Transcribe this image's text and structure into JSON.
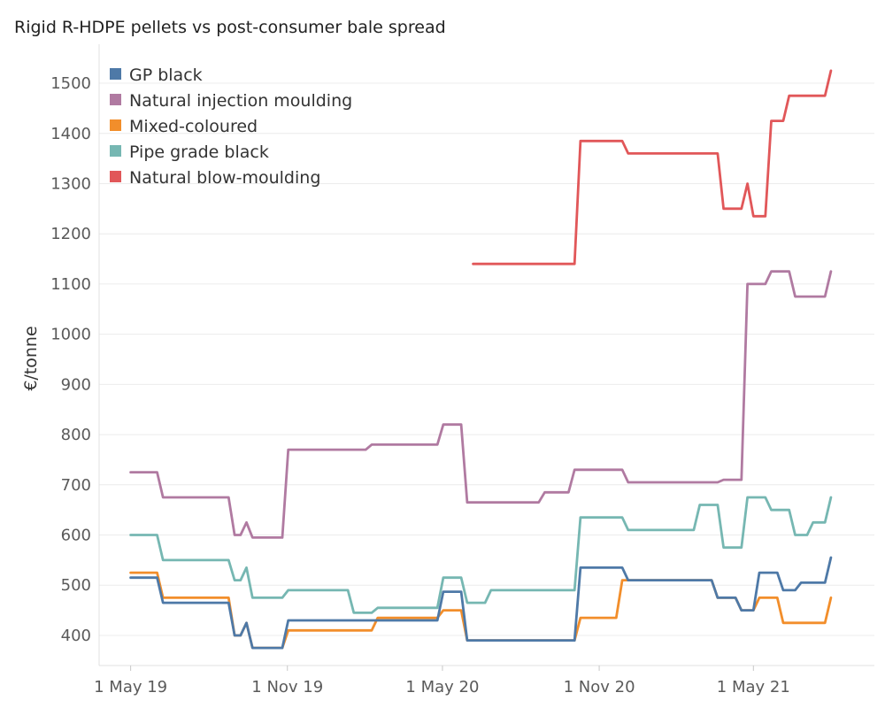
{
  "chart_data": {
    "type": "line",
    "title": "Rigid R-HDPE pellets vs post-consumer bale spread",
    "xlabel": "",
    "ylabel": "€/tonne",
    "ylim": [
      340,
      1560
    ],
    "xlim": [
      "2019-03-25",
      "2021-09-20"
    ],
    "x_ticks": [
      {
        "label": "1 May 19",
        "date": "2019-05-01"
      },
      {
        "label": "1 Nov 19",
        "date": "2019-11-01"
      },
      {
        "label": "1 May 20",
        "date": "2020-05-01"
      },
      {
        "label": "1 Nov 20",
        "date": "2020-11-01"
      },
      {
        "label": "1 May 21",
        "date": "2021-05-01"
      }
    ],
    "y_ticks": [
      400,
      500,
      600,
      700,
      800,
      900,
      1000,
      1100,
      1200,
      1300,
      1400,
      1500
    ],
    "grid": "horizontal",
    "legend_position": "top-left",
    "series": [
      {
        "name": "GP black",
        "color": "#4e79a7",
        "points": [
          [
            "2019-05-01",
            515
          ],
          [
            "2019-06-01",
            515
          ],
          [
            "2019-06-08",
            465
          ],
          [
            "2019-08-24",
            465
          ],
          [
            "2019-08-31",
            400
          ],
          [
            "2019-09-07",
            400
          ],
          [
            "2019-09-14",
            425
          ],
          [
            "2019-09-21",
            375
          ],
          [
            "2019-10-26",
            375
          ],
          [
            "2019-11-02",
            430
          ],
          [
            "2020-04-25",
            430
          ],
          [
            "2020-05-02",
            487
          ],
          [
            "2020-05-23",
            487
          ],
          [
            "2020-05-30",
            390
          ],
          [
            "2020-10-03",
            390
          ],
          [
            "2020-10-10",
            535
          ],
          [
            "2020-11-28",
            535
          ],
          [
            "2020-12-05",
            510
          ],
          [
            "2021-03-13",
            510
          ],
          [
            "2021-03-20",
            475
          ],
          [
            "2021-04-10",
            475
          ],
          [
            "2021-04-17",
            450
          ],
          [
            "2021-05-01",
            450
          ],
          [
            "2021-05-08",
            525
          ],
          [
            "2021-05-29",
            525
          ],
          [
            "2021-06-05",
            490
          ],
          [
            "2021-06-19",
            490
          ],
          [
            "2021-06-26",
            505
          ],
          [
            "2021-07-24",
            505
          ],
          [
            "2021-07-31",
            555
          ]
        ]
      },
      {
        "name": "Natural injection moulding",
        "color": "#b07aa1",
        "points": [
          [
            "2019-05-01",
            725
          ],
          [
            "2019-06-01",
            725
          ],
          [
            "2019-06-08",
            675
          ],
          [
            "2019-08-24",
            675
          ],
          [
            "2019-08-31",
            600
          ],
          [
            "2019-09-07",
            600
          ],
          [
            "2019-09-14",
            625
          ],
          [
            "2019-09-21",
            595
          ],
          [
            "2019-10-26",
            595
          ],
          [
            "2019-11-02",
            770
          ],
          [
            "2020-02-01",
            770
          ],
          [
            "2020-02-08",
            780
          ],
          [
            "2020-04-25",
            780
          ],
          [
            "2020-05-02",
            820
          ],
          [
            "2020-05-23",
            820
          ],
          [
            "2020-05-30",
            665
          ],
          [
            "2020-08-22",
            665
          ],
          [
            "2020-08-29",
            685
          ],
          [
            "2020-09-26",
            685
          ],
          [
            "2020-10-03",
            730
          ],
          [
            "2020-11-28",
            730
          ],
          [
            "2020-12-05",
            705
          ],
          [
            "2021-03-20",
            705
          ],
          [
            "2021-03-27",
            710
          ],
          [
            "2021-04-17",
            710
          ],
          [
            "2021-04-24",
            1100
          ],
          [
            "2021-05-15",
            1100
          ],
          [
            "2021-05-22",
            1125
          ],
          [
            "2021-06-12",
            1125
          ],
          [
            "2021-06-19",
            1075
          ],
          [
            "2021-07-24",
            1075
          ],
          [
            "2021-07-31",
            1125
          ]
        ]
      },
      {
        "name": "Mixed-coloured",
        "color": "#f28e2b",
        "points": [
          [
            "2019-05-01",
            525
          ],
          [
            "2019-06-01",
            525
          ],
          [
            "2019-06-08",
            475
          ],
          [
            "2019-08-24",
            475
          ],
          [
            "2019-08-31",
            400
          ],
          [
            "2019-09-07",
            400
          ],
          [
            "2019-09-14",
            425
          ],
          [
            "2019-09-21",
            375
          ],
          [
            "2019-10-26",
            375
          ],
          [
            "2019-11-02",
            410
          ],
          [
            "2020-02-08",
            410
          ],
          [
            "2020-02-15",
            435
          ],
          [
            "2020-04-25",
            435
          ],
          [
            "2020-05-02",
            450
          ],
          [
            "2020-05-23",
            450
          ],
          [
            "2020-05-30",
            390
          ],
          [
            "2020-10-03",
            390
          ],
          [
            "2020-10-10",
            435
          ],
          [
            "2020-11-21",
            435
          ],
          [
            "2020-11-28",
            510
          ],
          [
            "2021-03-13",
            510
          ],
          [
            "2021-03-20",
            475
          ],
          [
            "2021-04-10",
            475
          ],
          [
            "2021-04-17",
            450
          ],
          [
            "2021-05-01",
            450
          ],
          [
            "2021-05-08",
            475
          ],
          [
            "2021-05-29",
            475
          ],
          [
            "2021-06-05",
            425
          ],
          [
            "2021-07-24",
            425
          ],
          [
            "2021-07-31",
            475
          ]
        ]
      },
      {
        "name": "Pipe grade black",
        "color": "#76b7b2",
        "points": [
          [
            "2019-05-01",
            600
          ],
          [
            "2019-06-01",
            600
          ],
          [
            "2019-06-08",
            550
          ],
          [
            "2019-08-24",
            550
          ],
          [
            "2019-08-31",
            510
          ],
          [
            "2019-09-07",
            510
          ],
          [
            "2019-09-14",
            535
          ],
          [
            "2019-09-21",
            475
          ],
          [
            "2019-10-26",
            475
          ],
          [
            "2019-11-02",
            490
          ],
          [
            "2020-01-11",
            490
          ],
          [
            "2020-01-18",
            445
          ],
          [
            "2020-02-08",
            445
          ],
          [
            "2020-02-15",
            455
          ],
          [
            "2020-04-25",
            455
          ],
          [
            "2020-05-02",
            515
          ],
          [
            "2020-05-23",
            515
          ],
          [
            "2020-05-30",
            465
          ],
          [
            "2020-06-20",
            465
          ],
          [
            "2020-06-27",
            490
          ],
          [
            "2020-10-03",
            490
          ],
          [
            "2020-10-10",
            635
          ],
          [
            "2020-11-28",
            635
          ],
          [
            "2020-12-05",
            610
          ],
          [
            "2021-02-20",
            610
          ],
          [
            "2021-02-27",
            660
          ],
          [
            "2021-03-20",
            660
          ],
          [
            "2021-03-27",
            575
          ],
          [
            "2021-04-17",
            575
          ],
          [
            "2021-04-24",
            675
          ],
          [
            "2021-05-15",
            675
          ],
          [
            "2021-05-22",
            650
          ],
          [
            "2021-06-12",
            650
          ],
          [
            "2021-06-19",
            600
          ],
          [
            "2021-07-03",
            600
          ],
          [
            "2021-07-10",
            625
          ],
          [
            "2021-07-24",
            625
          ],
          [
            "2021-07-31",
            675
          ]
        ]
      },
      {
        "name": "Natural blow-moulding",
        "color": "#e15759",
        "points": [
          [
            "2020-06-06",
            1140
          ],
          [
            "2020-10-03",
            1140
          ],
          [
            "2020-10-10",
            1385
          ],
          [
            "2020-11-28",
            1385
          ],
          [
            "2020-12-05",
            1360
          ],
          [
            "2021-03-20",
            1360
          ],
          [
            "2021-03-27",
            1250
          ],
          [
            "2021-04-17",
            1250
          ],
          [
            "2021-04-24",
            1300
          ],
          [
            "2021-05-01",
            1235
          ],
          [
            "2021-05-15",
            1235
          ],
          [
            "2021-05-22",
            1425
          ],
          [
            "2021-06-05",
            1425
          ],
          [
            "2021-06-12",
            1475
          ],
          [
            "2021-07-24",
            1475
          ],
          [
            "2021-07-31",
            1525
          ]
        ]
      }
    ]
  }
}
